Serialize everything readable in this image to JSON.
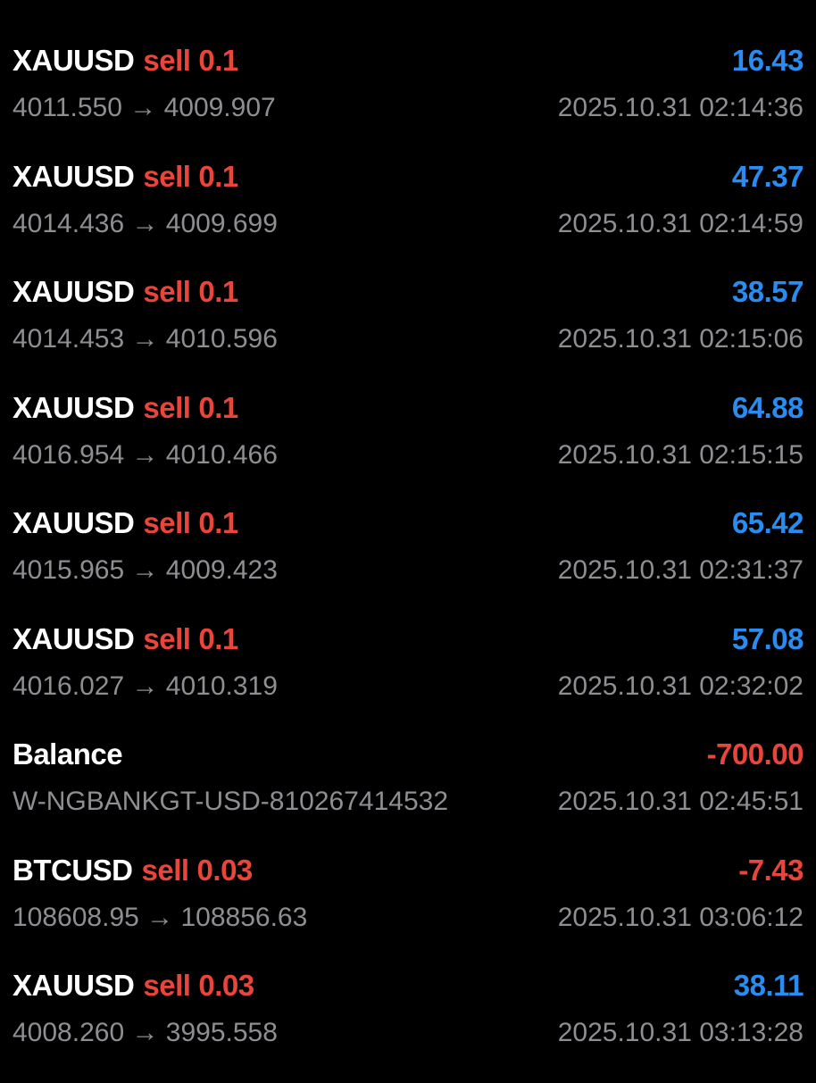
{
  "trades": [
    {
      "symbol": "XAUUSD",
      "side": "sell",
      "volume": "0.1",
      "profit": "16.43",
      "detail": "4011.550 → 4009.907",
      "time": "2025.10.31 02:14:36"
    },
    {
      "symbol": "XAUUSD",
      "side": "sell",
      "volume": "0.1",
      "profit": "47.37",
      "detail": "4014.436 → 4009.699",
      "time": "2025.10.31 02:14:59"
    },
    {
      "symbol": "XAUUSD",
      "side": "sell",
      "volume": "0.1",
      "profit": "38.57",
      "detail": "4014.453 → 4010.596",
      "time": "2025.10.31 02:15:06"
    },
    {
      "symbol": "XAUUSD",
      "side": "sell",
      "volume": "0.1",
      "profit": "64.88",
      "detail": "4016.954 → 4010.466",
      "time": "2025.10.31 02:15:15"
    },
    {
      "symbol": "XAUUSD",
      "side": "sell",
      "volume": "0.1",
      "profit": "65.42",
      "detail": "4015.965 → 4009.423",
      "time": "2025.10.31 02:31:37"
    },
    {
      "symbol": "XAUUSD",
      "side": "sell",
      "volume": "0.1",
      "profit": "57.08",
      "detail": "4016.027 → 4010.319",
      "time": "2025.10.31 02:32:02"
    },
    {
      "symbol": "Balance",
      "profit": "-700.00",
      "detail": "W-NGBANKGT-USD-810267414532",
      "time": "2025.10.31 02:45:51"
    },
    {
      "symbol": "BTCUSD",
      "side": "sell",
      "volume": "0.03",
      "profit": "-7.43",
      "detail": "108608.95 → 108856.63",
      "time": "2025.10.31 03:06:12"
    },
    {
      "symbol": "XAUUSD",
      "side": "sell",
      "volume": "0.03",
      "profit": "38.11",
      "detail": "4008.260 → 3995.558",
      "time": "2025.10.31 03:13:28"
    }
  ]
}
